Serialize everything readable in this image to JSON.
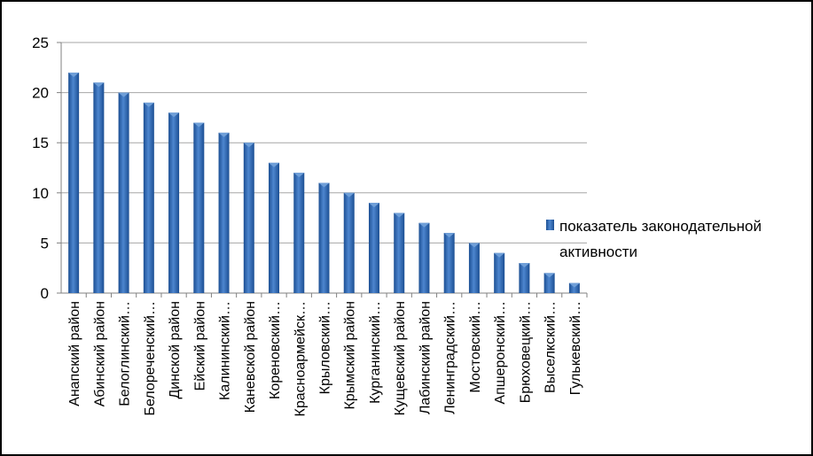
{
  "chart_data": {
    "type": "bar",
    "title": "",
    "xlabel": "",
    "ylabel": "",
    "ylim": [
      0,
      25
    ],
    "yticks": [
      0,
      5,
      10,
      15,
      20,
      25
    ],
    "grid": true,
    "legend_position": "right",
    "categories": [
      "Анапский район",
      "Абинский район",
      "Белоглинский…",
      "Белореченский…",
      "Динской район",
      "Ейский район",
      "Калининский…",
      "Каневской район",
      "Кореновский…",
      "Красноармейск…",
      "Крыловский…",
      "Крымский район",
      "Курганинский…",
      "Кущевский район",
      "Лабинский район",
      "Ленинградский…",
      "Мостовский…",
      "Апшеронский…",
      "Брюховецкий…",
      "Выселкский…",
      "Гулькевский…"
    ],
    "series": [
      {
        "name": "показатель законодательной активности",
        "values": [
          22,
          21,
          20,
          19,
          18,
          17,
          16,
          15,
          13,
          12,
          11,
          10,
          9,
          8,
          7,
          6,
          5,
          4,
          3,
          2,
          1
        ]
      }
    ],
    "legend_lines": [
      "показатель законодательной",
      "активности"
    ],
    "colors": {
      "bar": "#2f6fbf",
      "bar_dark": "#1c4f93",
      "bar_light": "#6f9fd8",
      "grid": "#a6a6a6"
    }
  }
}
